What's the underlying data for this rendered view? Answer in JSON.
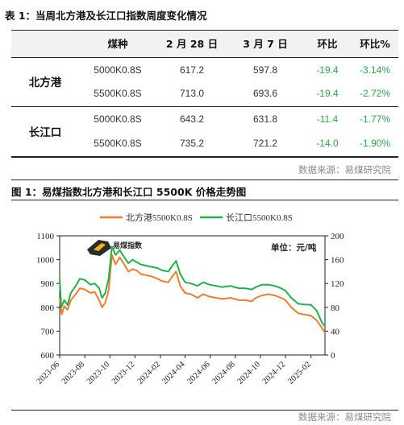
{
  "table": {
    "title": "表 1：当周北方港及长江口指数周度变化情况",
    "headers": [
      "煤种",
      "2 月 28 日",
      "3 月 7 日",
      "环比",
      "环比%"
    ],
    "groups": [
      {
        "name": "北方港",
        "rows": [
          {
            "coal": "5000K0.8S",
            "feb28": "617.2",
            "mar7": "597.8",
            "chg": "-19.4",
            "pct": "-3.14%"
          },
          {
            "coal": "5500K0.8S",
            "feb28": "713.0",
            "mar7": "693.6",
            "chg": "-19.4",
            "pct": "-2.72%"
          }
        ]
      },
      {
        "name": "长江口",
        "rows": [
          {
            "coal": "5000K0.8S",
            "feb28": "643.2",
            "mar7": "631.8",
            "chg": "-11.4",
            "pct": "-1.77%"
          },
          {
            "coal": "5500K0.8S",
            "feb28": "735.2",
            "mar7": "721.2",
            "chg": "-14.0",
            "pct": "-1.90%"
          }
        ]
      }
    ],
    "source": "数据来源：易煤研究院"
  },
  "figure": {
    "title": "图 1：易煤指数北方港和长江口 5500K 价格走势图",
    "logo_text": "易煤指数",
    "unit_label": "单位：元/吨",
    "source": "数据来源：易煤研究院"
  },
  "chart_data": {
    "type": "line",
    "x_ticks": [
      "2023-06",
      "2023-08",
      "2023-10",
      "2023-12",
      "2024-02",
      "2024-04",
      "2024-06",
      "2024-08",
      "2024-10",
      "2024-12",
      "2025-02"
    ],
    "ylim": [
      600,
      1100
    ],
    "yticks": [
      600,
      700,
      800,
      900,
      1000,
      1100
    ],
    "y2lim": [
      0,
      200
    ],
    "y2ticks": [
      0,
      40,
      80,
      120,
      160,
      200
    ],
    "series": [
      {
        "name": "北方港5500K0.8S",
        "color": "#ed7d31",
        "points": [
          [
            "2023-06-01",
            840
          ],
          [
            "2023-06-06",
            770
          ],
          [
            "2023-06-12",
            805
          ],
          [
            "2023-06-20",
            790
          ],
          [
            "2023-06-28",
            830
          ],
          [
            "2023-07-10",
            855
          ],
          [
            "2023-07-20",
            880
          ],
          [
            "2023-08-01",
            875
          ],
          [
            "2023-08-15",
            860
          ],
          [
            "2023-08-25",
            865
          ],
          [
            "2023-09-05",
            830
          ],
          [
            "2023-09-12",
            800
          ],
          [
            "2023-09-20",
            820
          ],
          [
            "2023-09-28",
            870
          ],
          [
            "2023-10-06",
            1020
          ],
          [
            "2023-10-15",
            980
          ],
          [
            "2023-10-25",
            1010
          ],
          [
            "2023-11-05",
            980
          ],
          [
            "2023-11-15",
            950
          ],
          [
            "2023-11-25",
            960
          ],
          [
            "2023-12-05",
            955
          ],
          [
            "2023-12-15",
            940
          ],
          [
            "2023-12-28",
            935
          ],
          [
            "2024-01-10",
            930
          ],
          [
            "2024-01-25",
            920
          ],
          [
            "2024-02-05",
            910
          ],
          [
            "2024-02-20",
            905
          ],
          [
            "2024-03-01",
            930
          ],
          [
            "2024-03-10",
            950
          ],
          [
            "2024-03-20",
            890
          ],
          [
            "2024-04-01",
            860
          ],
          [
            "2024-04-15",
            855
          ],
          [
            "2024-05-01",
            840
          ],
          [
            "2024-05-15",
            855
          ],
          [
            "2024-05-30",
            845
          ],
          [
            "2024-06-15",
            840
          ],
          [
            "2024-07-01",
            835
          ],
          [
            "2024-07-20",
            840
          ],
          [
            "2024-08-10",
            830
          ],
          [
            "2024-08-25",
            830
          ],
          [
            "2024-09-10",
            825
          ],
          [
            "2024-09-20",
            840
          ],
          [
            "2024-10-05",
            850
          ],
          [
            "2024-10-20",
            855
          ],
          [
            "2024-11-05",
            850
          ],
          [
            "2024-11-20",
            840
          ],
          [
            "2024-12-01",
            830
          ],
          [
            "2024-12-15",
            800
          ],
          [
            "2025-01-01",
            775
          ],
          [
            "2025-01-15",
            770
          ],
          [
            "2025-02-01",
            765
          ],
          [
            "2025-02-15",
            745
          ],
          [
            "2025-02-28",
            713
          ],
          [
            "2025-03-07",
            693.6
          ]
        ]
      },
      {
        "name": "长江口5500K0.8S",
        "color": "#22b14c",
        "points": [
          [
            "2023-06-01",
            920
          ],
          [
            "2023-06-05",
            800
          ],
          [
            "2023-06-12",
            830
          ],
          [
            "2023-06-20",
            810
          ],
          [
            "2023-06-28",
            860
          ],
          [
            "2023-07-10",
            890
          ],
          [
            "2023-07-20",
            920
          ],
          [
            "2023-08-01",
            915
          ],
          [
            "2023-08-15",
            895
          ],
          [
            "2023-08-25",
            900
          ],
          [
            "2023-09-05",
            880
          ],
          [
            "2023-09-12",
            840
          ],
          [
            "2023-09-20",
            860
          ],
          [
            "2023-09-28",
            920
          ],
          [
            "2023-10-06",
            1055
          ],
          [
            "2023-10-15",
            1020
          ],
          [
            "2023-10-25",
            1040
          ],
          [
            "2023-11-05",
            1010
          ],
          [
            "2023-11-15",
            985
          ],
          [
            "2023-11-25",
            1000
          ],
          [
            "2023-12-05",
            990
          ],
          [
            "2023-12-15",
            980
          ],
          [
            "2023-12-28",
            975
          ],
          [
            "2024-01-10",
            970
          ],
          [
            "2024-01-25",
            965
          ],
          [
            "2024-02-05",
            955
          ],
          [
            "2024-02-20",
            950
          ],
          [
            "2024-03-01",
            975
          ],
          [
            "2024-03-10",
            995
          ],
          [
            "2024-03-20",
            940
          ],
          [
            "2024-04-01",
            905
          ],
          [
            "2024-04-15",
            900
          ],
          [
            "2024-05-01",
            890
          ],
          [
            "2024-05-15",
            905
          ],
          [
            "2024-05-30",
            895
          ],
          [
            "2024-06-15",
            890
          ],
          [
            "2024-07-01",
            885
          ],
          [
            "2024-07-20",
            890
          ],
          [
            "2024-08-10",
            880
          ],
          [
            "2024-08-25",
            880
          ],
          [
            "2024-09-10",
            875
          ],
          [
            "2024-09-20",
            885
          ],
          [
            "2024-10-05",
            895
          ],
          [
            "2024-10-20",
            895
          ],
          [
            "2024-11-05",
            890
          ],
          [
            "2024-11-20",
            880
          ],
          [
            "2024-12-01",
            870
          ],
          [
            "2024-12-15",
            840
          ],
          [
            "2025-01-01",
            815
          ],
          [
            "2025-01-15",
            812
          ],
          [
            "2025-02-01",
            810
          ],
          [
            "2025-02-15",
            785
          ],
          [
            "2025-02-28",
            735.2
          ],
          [
            "2025-03-07",
            721.2
          ]
        ]
      }
    ]
  }
}
